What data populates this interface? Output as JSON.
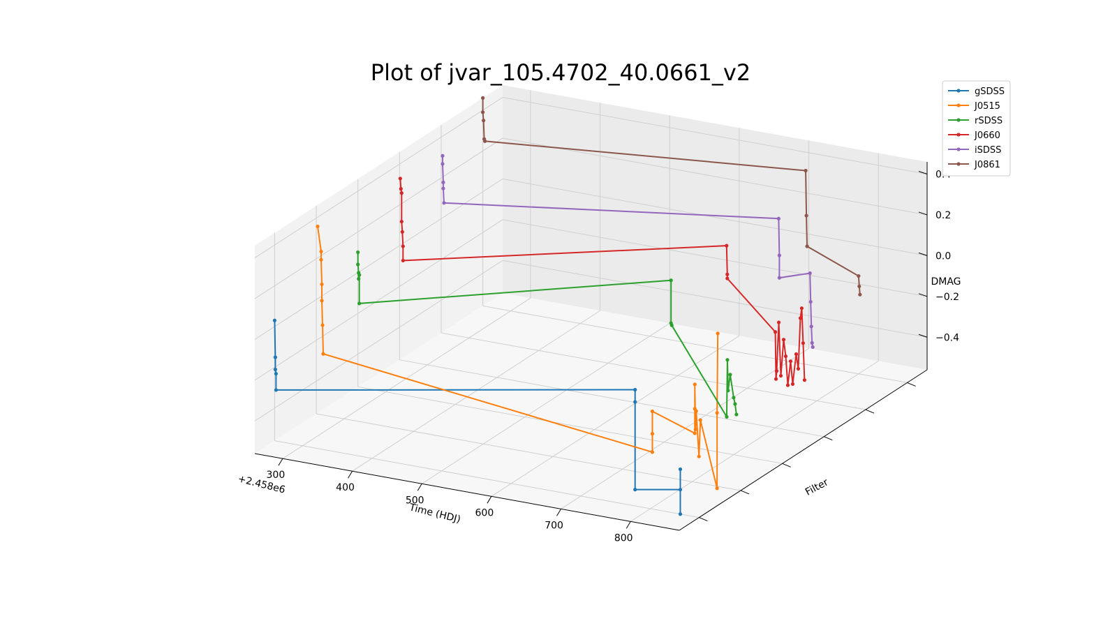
{
  "chart_data": {
    "type": "line",
    "projection": "3d",
    "title": "Plot of jvar_105.4702_40.0661_v2",
    "xlabel": "Time (HDJ)",
    "ylabel": "Filter",
    "zlabel": "DMAG",
    "x_offset_label": "+2.458e6",
    "x_ticks": [
      "300",
      "400",
      "500",
      "600",
      "700",
      "800"
    ],
    "z_ticks": [
      "−0.4",
      "−0.2",
      "0.0",
      "0.2",
      "0.4"
    ],
    "filter_ticks": 6,
    "grid": true,
    "legend_position": "top-right",
    "x_range": [
      2458260,
      2458870
    ],
    "z_range": [
      -0.56,
      0.46
    ],
    "series": [
      {
        "name": "gSDSS",
        "color": "#1f77b4",
        "filter_index": 0,
        "x": [
          2458260,
          2458261,
          2458261,
          2458262,
          2458262,
          2458778,
          2458778,
          2458778,
          2458843,
          2458843,
          2458843
        ],
        "y": [
          0.03,
          -0.15,
          -0.21,
          -0.23,
          -0.31,
          0.01,
          -0.05,
          -0.48,
          -0.44,
          -0.34,
          -0.56
        ]
      },
      {
        "name": "J0515",
        "color": "#ff7f0e",
        "filter_index": 1,
        "x": [
          2458262,
          2458267,
          2458267,
          2458268,
          2458268,
          2458269,
          2458270,
          2458743,
          2458743,
          2458743,
          2458804,
          2458804,
          2458804,
          2458805,
          2458806,
          2458810,
          2458812,
          2458836,
          2458836,
          2458837
        ],
        "y": [
          0.36,
          0.24,
          0.2,
          0.08,
          0.0,
          -0.12,
          -0.26,
          -0.45,
          -0.36,
          -0.25,
          -0.32,
          -0.2,
          -0.08,
          -0.3,
          -0.21,
          -0.43,
          -0.25,
          -0.57,
          -0.2,
          0.19
        ],
        "extra_points_note": ""
      },
      {
        "name": "rSDSS",
        "color": "#2ca02c",
        "filter_index": 2,
        "x": [
          2458260,
          2458260,
          2458261,
          2458261,
          2458262,
          2458262,
          2458710,
          2458710,
          2458711,
          2458790,
          2458791,
          2458792,
          2458795,
          2458800,
          2458802,
          2458804
        ],
        "y": [
          0.1,
          0.04,
          0.0,
          -0.03,
          -0.01,
          -0.15,
          0.24,
          0.03,
          0.02,
          -0.38,
          -0.1,
          -0.25,
          -0.17,
          -0.28,
          -0.31,
          -0.36
        ]
      },
      {
        "name": "J0660",
        "color": "#d62728",
        "filter_index": 3,
        "x": [
          2458261,
          2458262,
          2458263,
          2458263,
          2458264,
          2458265,
          2458265,
          2458730,
          2458731,
          2458731,
          2458800,
          2458801,
          2458802,
          2458805,
          2458808,
          2458812,
          2458815,
          2458818,
          2458822,
          2458825,
          2458830,
          2458833,
          2458836,
          2458838,
          2458840,
          2458842
        ],
        "y": [
          0.33,
          0.28,
          0.26,
          0.12,
          0.07,
          0.0,
          -0.07,
          0.29,
          0.15,
          0.13,
          -0.09,
          -0.32,
          -0.28,
          -0.04,
          -0.3,
          -0.12,
          -0.2,
          -0.34,
          -0.22,
          -0.33,
          -0.18,
          -0.25,
          0.0,
          0.05,
          -0.12,
          -0.3
        ]
      },
      {
        "name": "iSDSS",
        "color": "#9467bd",
        "filter_index": 4,
        "x": [
          2458262,
          2458262,
          2458263,
          2458263,
          2458264,
          2458745,
          2458746,
          2458746,
          2458790,
          2458791,
          2458792,
          2458793,
          2458794
        ],
        "y": [
          0.31,
          0.27,
          0.18,
          0.15,
          0.08,
          0.3,
          0.12,
          0.01,
          0.06,
          -0.08,
          -0.2,
          -0.28,
          -0.3
        ]
      },
      {
        "name": "J0861",
        "color": "#8c564b",
        "filter_index": 5,
        "x": [
          2458260,
          2458260,
          2458261,
          2458262,
          2458263,
          2458724,
          2458725,
          2458726,
          2458800,
          2458801,
          2458802
        ],
        "y": [
          0.46,
          0.39,
          0.35,
          0.26,
          0.25,
          0.39,
          0.17,
          0.02,
          -0.08,
          -0.13,
          -0.17
        ]
      }
    ]
  }
}
